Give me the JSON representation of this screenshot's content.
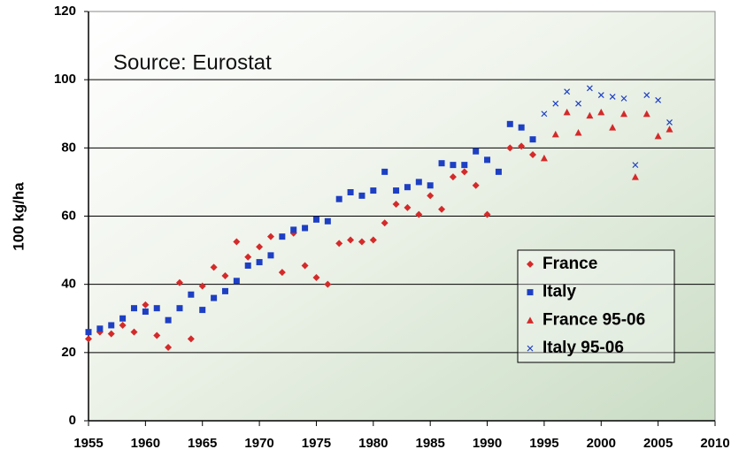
{
  "chart_data": {
    "type": "scatter",
    "annotation": "Source: Eurostat",
    "y_label": "100 kg/ha",
    "xlim": [
      1955,
      2010
    ],
    "xticks": [
      1955,
      1960,
      1965,
      1970,
      1975,
      1980,
      1985,
      1990,
      1995,
      2000,
      2005,
      2010
    ],
    "ylim": [
      0,
      120
    ],
    "yticks": [
      0,
      20,
      40,
      60,
      80,
      100,
      120
    ],
    "grid": true,
    "legend": "lower right",
    "series": [
      {
        "name": "France",
        "color": "#d42a2a",
        "marker": "diamond",
        "x": [
          1955,
          1956,
          1957,
          1958,
          1959,
          1960,
          1961,
          1962,
          1963,
          1964,
          1965,
          1966,
          1967,
          1968,
          1969,
          1970,
          1971,
          1972,
          1973,
          1974,
          1975,
          1976,
          1977,
          1978,
          1979,
          1980,
          1981,
          1982,
          1983,
          1984,
          1985,
          1986,
          1987,
          1988,
          1989,
          1990,
          1992,
          1993,
          1994
        ],
        "values": [
          24,
          26,
          25.5,
          28,
          26,
          34,
          25,
          21.5,
          40.5,
          24,
          39.5,
          45,
          42.5,
          52.5,
          48,
          51,
          54,
          43.5,
          55,
          45.5,
          42,
          40,
          52,
          53,
          52.5,
          53,
          58,
          63.5,
          62.5,
          60.5,
          66,
          62,
          71.5,
          73,
          69,
          60.5,
          80,
          80.5,
          78
        ]
      },
      {
        "name": "Italy",
        "color": "#1d3fc4",
        "marker": "square",
        "x": [
          1955,
          1956,
          1957,
          1958,
          1959,
          1960,
          1961,
          1962,
          1963,
          1964,
          1965,
          1966,
          1967,
          1968,
          1969,
          1970,
          1971,
          1972,
          1973,
          1974,
          1975,
          1976,
          1977,
          1978,
          1979,
          1980,
          1981,
          1982,
          1983,
          1984,
          1985,
          1986,
          1987,
          1988,
          1989,
          1990,
          1991,
          1992,
          1993,
          1994
        ],
        "values": [
          26,
          27,
          28,
          30,
          33,
          32,
          33,
          29.5,
          33,
          37,
          32.5,
          36,
          38,
          41,
          45.5,
          46.5,
          48.5,
          54,
          56,
          56.5,
          59,
          58.5,
          65,
          67,
          66,
          67.5,
          73,
          67.5,
          68.5,
          70,
          69,
          75.5,
          75,
          75,
          79,
          76.5,
          73,
          87,
          86,
          82.5
        ]
      },
      {
        "name": "France 95-06",
        "color": "#d42a2a",
        "marker": "triangle",
        "x": [
          1995,
          1996,
          1997,
          1998,
          1999,
          2000,
          2001,
          2002,
          2003,
          2004,
          2005,
          2006
        ],
        "values": [
          77,
          84,
          90.5,
          84.5,
          89.5,
          90.5,
          86,
          90,
          71.5,
          90,
          83.5,
          85.5
        ]
      },
      {
        "name": "Italy 95-06",
        "color": "#1d3fc4",
        "marker": "x",
        "x": [
          1995,
          1996,
          1997,
          1998,
          1999,
          2000,
          2001,
          2002,
          2003,
          2004,
          2005,
          2006
        ],
        "values": [
          90,
          93,
          96.5,
          93,
          97.5,
          95.5,
          95,
          94.5,
          75,
          95.5,
          94,
          87.5
        ]
      }
    ]
  }
}
